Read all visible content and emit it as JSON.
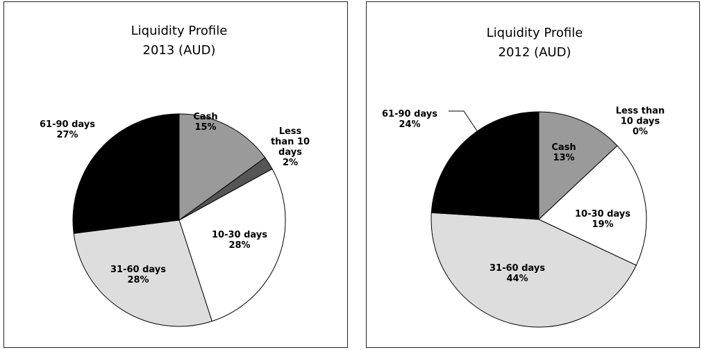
{
  "chart_data": [
    {
      "type": "pie",
      "title": "Liquidity Profile",
      "subtitle": "2013 (AUD)",
      "categories": [
        "Cash",
        "Less than 10 days",
        "10-30 days",
        "31-60 days",
        "61-90 days"
      ],
      "values": [
        15,
        2,
        28,
        28,
        27
      ],
      "value_labels": [
        "15%",
        "2%",
        "28%",
        "28%",
        "27%"
      ],
      "colors": [
        "#9a9a9a",
        "#555555",
        "#ffffff",
        "#dddddd",
        "#000000"
      ]
    },
    {
      "type": "pie",
      "title": "Liquidity Profile",
      "subtitle": "2012 (AUD)",
      "categories": [
        "Cash",
        "Less than 10 days",
        "10-30 days",
        "31-60 days",
        "61-90 days"
      ],
      "values": [
        13,
        0,
        19,
        44,
        24
      ],
      "value_labels": [
        "13%",
        "0%",
        "19%",
        "44%",
        "24%"
      ],
      "colors": [
        "#9a9a9a",
        "#555555",
        "#ffffff",
        "#dddddd",
        "#000000"
      ]
    }
  ]
}
